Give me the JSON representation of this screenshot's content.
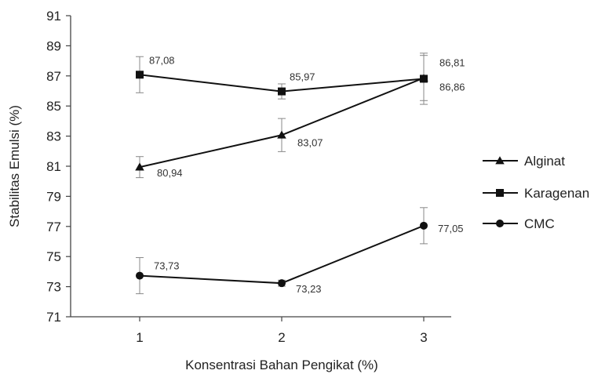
{
  "chart_data": {
    "type": "line",
    "xlabel": "Konsentrasi Bahan Pengikat (%)",
    "ylabel": "Stabilitas Emulsi (%)",
    "ylim": [
      71,
      91
    ],
    "yticks": [
      "71",
      "73",
      "75",
      "77",
      "79",
      "81",
      "83",
      "85",
      "87",
      "89",
      "91"
    ],
    "x": [
      1,
      2,
      3
    ],
    "xticks": [
      "1",
      "2",
      "3"
    ],
    "grid": false,
    "legend_position": "right",
    "series": [
      {
        "name": "Alginat",
        "marker": "triangle",
        "values": [
          80.94,
          83.07,
          86.86
        ],
        "errors": [
          0.7,
          1.1,
          1.5
        ],
        "labels": [
          "80,94",
          "83,07",
          "86,86"
        ]
      },
      {
        "name": "Karagenan",
        "marker": "square",
        "values": [
          87.08,
          85.97,
          86.81
        ],
        "errors": [
          1.2,
          0.5,
          1.7
        ],
        "labels": [
          "87,08",
          "85,97",
          "86,81"
        ]
      },
      {
        "name": "CMC",
        "marker": "circle",
        "values": [
          73.73,
          73.23,
          77.05
        ],
        "errors": [
          1.2,
          0.2,
          1.2
        ],
        "labels": [
          "73,73",
          "73,23",
          "77,05"
        ]
      }
    ]
  }
}
